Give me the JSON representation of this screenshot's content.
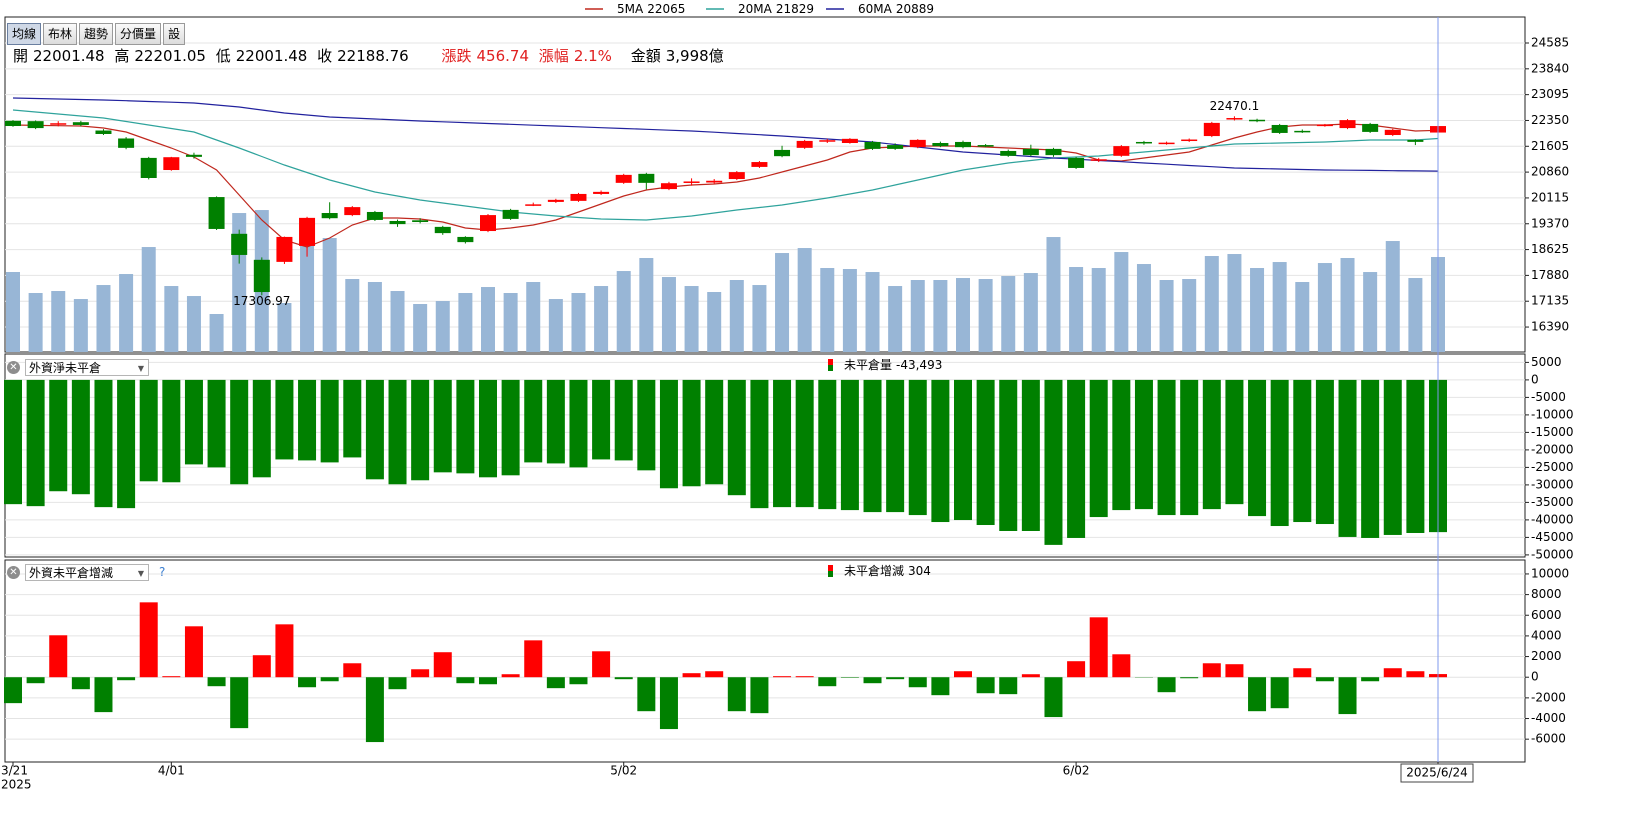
{
  "toolbar": [
    "均線",
    "布林",
    "趨勢",
    "分價量",
    "設"
  ],
  "quote": {
    "open": "開",
    "high": "高",
    "low": "低",
    "close": "收",
    "change_label": "漲跌",
    "change": 456.74,
    "change_pct_label": "漲幅",
    "change_pct": {
      "value": 2.1,
      "label": "2.1%"
    },
    "amount_label": "金額",
    "amount": {
      "value": 3998,
      "label": "3,998億"
    }
  },
  "chart_data": [
    {
      "type": "candlestick",
      "categories": [
        "3/21",
        null,
        null,
        null,
        null,
        null,
        null,
        "4/01",
        null,
        null,
        null,
        null,
        null,
        null,
        null,
        null,
        null,
        null,
        null,
        null,
        null,
        null,
        null,
        null,
        null,
        null,
        null,
        "5/02",
        null,
        null,
        null,
        null,
        null,
        null,
        null,
        null,
        null,
        null,
        null,
        null,
        null,
        null,
        null,
        null,
        null,
        null,
        null,
        "6/02",
        null,
        null,
        null,
        null,
        null,
        null,
        null,
        null,
        null,
        null,
        null,
        null,
        null,
        null,
        null,
        "2025/6/24"
      ],
      "year_label": "2025",
      "open": [
        22340,
        22330,
        22240,
        22300,
        22060,
        21830,
        21270,
        20920,
        21360,
        20140,
        19080,
        18330,
        18270,
        18730,
        19680,
        19620,
        19710,
        19450,
        19470,
        19280,
        18990,
        19160,
        19770,
        19910,
        20000,
        20030,
        20230,
        20550,
        20810,
        20370,
        20560,
        20560,
        20660,
        21010,
        21500,
        21560,
        21740,
        21700,
        21730,
        21640,
        21580,
        21700,
        21730,
        21640,
        21470,
        21530,
        21530,
        21270,
        21190,
        21330,
        21730,
        21680,
        21760,
        21900,
        22380,
        22370,
        22220,
        22050,
        22200,
        22130,
        22250,
        21930,
        21790,
        22001.48
      ],
      "high": [
        22360,
        22350,
        22330,
        22340,
        22100,
        21870,
        21300,
        21300,
        21420,
        20160,
        19200,
        18400,
        19000,
        19570,
        19990,
        19880,
        19740,
        19490,
        19530,
        19310,
        19010,
        19650,
        19800,
        19980,
        20090,
        20260,
        20330,
        20810,
        20840,
        20580,
        20680,
        20660,
        20890,
        21180,
        21620,
        21790,
        21820,
        21840,
        21760,
        21690,
        21810,
        21740,
        21770,
        21670,
        21510,
        21650,
        21560,
        21300,
        21270,
        21640,
        21760,
        21740,
        21830,
        22310,
        22470.1,
        22400,
        22250,
        22090,
        22250,
        22390,
        22280,
        22110,
        21810,
        22201.05
      ],
      "low": [
        22170,
        22100,
        22180,
        22180,
        21930,
        21520,
        20650,
        20900,
        21250,
        19190,
        18220,
        17306.97,
        18210,
        18420,
        19500,
        19590,
        19450,
        19280,
        19380,
        19050,
        18800,
        19130,
        19480,
        19880,
        19970,
        20000,
        20200,
        20520,
        20360,
        20340,
        20470,
        20520,
        20630,
        20980,
        21290,
        21530,
        21700,
        21680,
        21500,
        21500,
        21550,
        21580,
        21550,
        21580,
        21300,
        21320,
        21300,
        20950,
        21150,
        21300,
        21650,
        21650,
        21730,
        21870,
        22350,
        22300,
        21960,
        21990,
        22170,
        22100,
        21990,
        21900,
        21640,
        22001.48
      ],
      "close": [
        22190,
        22130,
        22270,
        22220,
        21960,
        21560,
        20690,
        21290,
        21300,
        19220,
        18470,
        17400,
        18990,
        19540,
        19530,
        19850,
        19480,
        19360,
        19420,
        19100,
        18840,
        19620,
        19510,
        19930,
        20060,
        20230,
        20290,
        20780,
        20550,
        20540,
        20590,
        20610,
        20860,
        21150,
        21320,
        21760,
        21780,
        21820,
        21530,
        21530,
        21790,
        21610,
        21580,
        21610,
        21330,
        21350,
        21350,
        20980,
        21230,
        21610,
        21700,
        21710,
        21800,
        22280,
        22420,
        22330,
        21990,
        22030,
        22230,
        22360,
        22020,
        22080,
        21732.02,
        22188.76
      ],
      "up_color": "#ff0000",
      "down_color": "#008000",
      "volume": {
        "color": "#98b6d6",
        "ylim": [
          0,
          14100
        ],
        "values": [
          3367,
          2483,
          2567,
          2230,
          2819,
          3282,
          4418,
          2777,
          2356,
          1599,
          5849,
          5975,
          2062,
          4797,
          4797,
          3072,
          2946,
          2567,
          2020,
          2146,
          2483,
          2735,
          2483,
          2946,
          2230,
          2483,
          2777,
          3408,
          3956,
          3156,
          2777,
          2525,
          3030,
          2819,
          4166,
          4376,
          3535,
          3493,
          3366,
          2777,
          3030,
          3030,
          3114,
          3072,
          3198,
          3324,
          4839,
          3577,
          3535,
          4208,
          3703,
          3030,
          3072,
          4040,
          4124,
          3535,
          3787,
          2946,
          3745,
          3956,
          3366,
          4671,
          3114,
          3998
        ]
      },
      "ma_series": [
        {
          "name": "5MA",
          "latest": 22065,
          "color": "#c0281e",
          "values": [
            22219,
            22209,
            22200,
            22190,
            22133,
            22017,
            21787,
            21556,
            21296,
            20921,
            20200,
            19478,
            18902,
            18700,
            18959,
            19334,
            19536,
            19536,
            19507,
            19421,
            19248,
            19190,
            19248,
            19334,
            19478,
            19709,
            19940,
            20171,
            20344,
            20430,
            20488,
            20517,
            20575,
            20690,
            20863,
            21036,
            21209,
            21440,
            21556,
            21585,
            21614,
            21614,
            21614,
            21585,
            21556,
            21527,
            21498,
            21412,
            21209,
            21181,
            21267,
            21354,
            21440,
            21642,
            21844,
            22017,
            22161,
            22219,
            22219,
            22248,
            22219,
            22133,
            22046,
            22065
          ]
        },
        {
          "name": "20MA",
          "latest": 21829,
          "color": "#2fa39c",
          "values": [
            22652,
            22594,
            22536,
            22479,
            22421,
            22320,
            22219,
            22118,
            22017,
            21787,
            21556,
            21311,
            21065,
            20849,
            20632,
            20459,
            20286,
            20171,
            20055,
            19969,
            19882,
            19796,
            19709,
            19652,
            19594,
            19551,
            19507,
            19493,
            19478,
            19536,
            19594,
            19681,
            19767,
            19839,
            19911,
            20012,
            20113,
            20229,
            20344,
            20488,
            20632,
            20777,
            20921,
            21022,
            21123,
            21195,
            21267,
            21296,
            21325,
            21383,
            21440,
            21498,
            21556,
            21614,
            21671,
            21686,
            21700,
            21715,
            21729,
            21758,
            21787,
            21787,
            21787,
            21829
          ]
        },
        {
          "name": "60MA",
          "latest": 20889,
          "color": "#22229e",
          "values": [
            22998,
            22984,
            22970,
            22955,
            22941,
            22919,
            22898,
            22876,
            22854,
            22797,
            22739,
            22653,
            22566,
            22508,
            22450,
            22421,
            22392,
            22364,
            22335,
            22311,
            22287,
            22263,
            22238,
            22214,
            22190,
            22166,
            22142,
            22118,
            22094,
            22070,
            22046,
            22010,
            21974,
            21938,
            21902,
            21859,
            21816,
            21772,
            21729,
            21657,
            21585,
            21512,
            21440,
            21397,
            21354,
            21310,
            21267,
            21231,
            21195,
            21159,
            21123,
            21087,
            21051,
            21015,
            20979,
            20965,
            20950,
            20936,
            20921,
            20915,
            20908,
            20902,
            20895,
            20889
          ]
        }
      ],
      "high_label_color": "#e0209a",
      "low_label_color": "#2e7d32",
      "ylim": [
        15670,
        25335
      ],
      "yticks": [
        24585,
        23840,
        23095,
        22350,
        21605,
        20860,
        20115,
        19370,
        18625,
        17880,
        17135,
        16390
      ],
      "grid": true
    },
    {
      "type": "bar",
      "selector": "外資淨未平倉",
      "series": [
        {
          "name": "未平倉量",
          "color": "#008000",
          "latest_label": "-43,493",
          "values": [
            -35500,
            -36070,
            -31810,
            -32660,
            -36350,
            -36640,
            -28970,
            -29250,
            -24140,
            -24990,
            -29820,
            -27830,
            -22720,
            -23000,
            -23570,
            -22150,
            -28400,
            -29820,
            -28680,
            -26410,
            -26700,
            -27830,
            -27260,
            -23570,
            -23860,
            -24990,
            -22720,
            -23000,
            -25840,
            -30960,
            -30390,
            -29820,
            -32940,
            -36640,
            -36350,
            -36350,
            -36920,
            -37200,
            -37770,
            -37770,
            -38620,
            -40610,
            -40040,
            -41460,
            -43170,
            -43170,
            -47140,
            -45160,
            -39190,
            -37200,
            -36920,
            -38620,
            -38620,
            -36920,
            -35500,
            -38910,
            -41750,
            -40610,
            -41180,
            -44870,
            -45160,
            -44300,
            -43740,
            -43493
          ]
        }
      ],
      "ylim": [
        -50600,
        7400
      ],
      "yticks": [
        5000,
        0,
        -5000,
        -10000,
        -15000,
        -20000,
        -25000,
        -30000,
        -35000,
        -40000,
        -45000,
        -50000
      ],
      "grid": true
    },
    {
      "type": "bar",
      "selector": "外資未平倉增減",
      "help": "?",
      "series": [
        {
          "name": "未平倉增減",
          "color": "#008000",
          "positive_color": "#ff0000",
          "values": [
            -2510,
            -580,
            4060,
            -1160,
            -3380,
            -290,
            7250,
            100,
            4930,
            -870,
            -4930,
            2130,
            5120,
            -970,
            -390,
            1350,
            -6280,
            -1160,
            770,
            2420,
            -580,
            -680,
            290,
            3570,
            -1060,
            -680,
            2510,
            -190,
            -3290,
            -5020,
            390,
            580,
            -3290,
            -3480,
            100,
            100,
            -870,
            -50,
            -580,
            -190,
            -970,
            -1740,
            580,
            -1550,
            -1640,
            290,
            -3860,
            1550,
            5800,
            2220,
            -30,
            -1450,
            -100,
            1350,
            1260,
            -3290,
            -3000,
            870,
            -390,
            -3570,
            -390,
            870,
            580,
            304
          ]
        }
      ],
      "ylim": [
        -8210,
        11350
      ],
      "yticks": [
        10000,
        8000,
        6000,
        4000,
        2000,
        0,
        -2000,
        -4000,
        -6000
      ],
      "grid": true
    }
  ]
}
